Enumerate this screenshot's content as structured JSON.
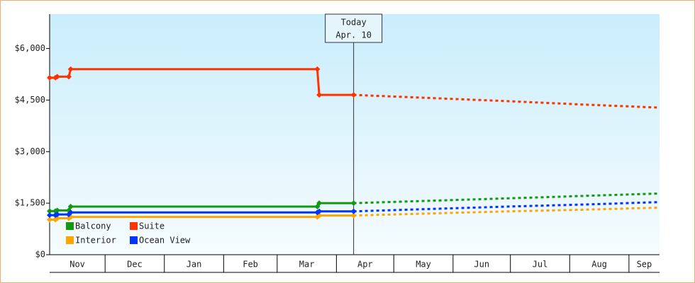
{
  "chart_data": {
    "type": "line",
    "x": [
      1,
      4,
      5,
      11,
      12,
      141,
      142,
      160
    ],
    "xlim": [
      1,
      320
    ],
    "xticks": [
      {
        "value": 0,
        "label": "Nov"
      },
      {
        "value": 30,
        "label": "Dec"
      },
      {
        "value": 61,
        "label": "Jan"
      },
      {
        "value": 92,
        "label": "Feb"
      },
      {
        "value": 120,
        "label": "Mar"
      },
      {
        "value": 151,
        "label": "Apr"
      },
      {
        "value": 181,
        "label": "May"
      },
      {
        "value": 212,
        "label": "Jun"
      },
      {
        "value": 242,
        "label": "Jul"
      },
      {
        "value": 273,
        "label": "Aug"
      },
      {
        "value": 304,
        "label": "Sep"
      }
    ],
    "ylim": [
      0,
      7000
    ],
    "yticks": [
      {
        "value": 0,
        "label": "$0"
      },
      {
        "value": 1500,
        "label": "$1,500"
      },
      {
        "value": 3000,
        "label": "$3,000"
      },
      {
        "value": 4500,
        "label": "$4,500"
      },
      {
        "value": 6000,
        "label": "$6,000"
      }
    ],
    "series": [
      {
        "name": "Balcony",
        "color": "#119911",
        "values": [
          1270,
          1270,
          1290,
          1290,
          1400,
          1400,
          1500,
          1500
        ]
      },
      {
        "name": "Suite",
        "color": "#ff3300",
        "values": [
          5150,
          5150,
          5180,
          5180,
          5400,
          5400,
          4650,
          4650
        ]
      },
      {
        "name": "Interior",
        "color": "#ffa500",
        "values": [
          1020,
          1020,
          1060,
          1060,
          1100,
          1100,
          1140,
          1140
        ]
      },
      {
        "name": "Ocean View",
        "color": "#0033ff",
        "values": [
          1150,
          1150,
          1170,
          1170,
          1230,
          1230,
          1260,
          1260
        ]
      }
    ],
    "forecast": {
      "x": [
        160,
        200,
        240,
        280,
        320
      ],
      "series": [
        {
          "values": [
            1500,
            1570,
            1640,
            1710,
            1780
          ]
        },
        {
          "values": [
            4650,
            4560,
            4470,
            4370,
            4280
          ]
        },
        {
          "values": [
            1140,
            1200,
            1260,
            1310,
            1370
          ]
        },
        {
          "values": [
            1260,
            1330,
            1400,
            1460,
            1530
          ]
        }
      ]
    },
    "annotation": {
      "x": 160,
      "lines": [
        "Today",
        "Apr. 10"
      ]
    }
  }
}
